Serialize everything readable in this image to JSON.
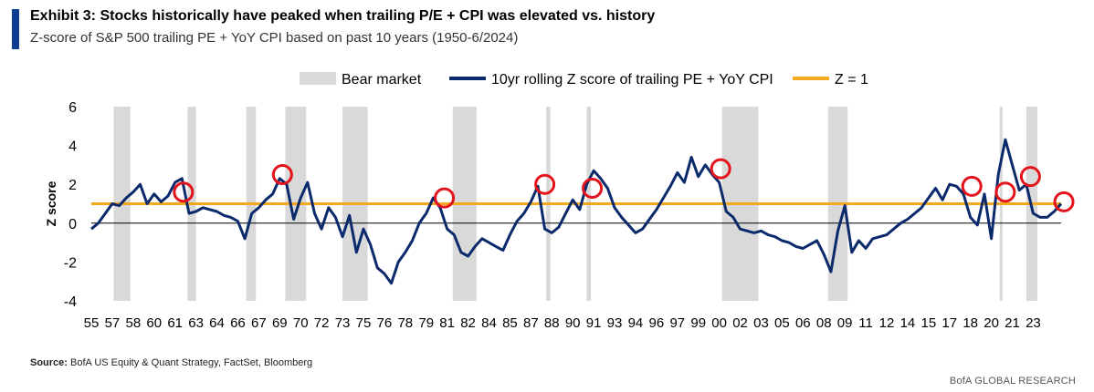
{
  "header": {
    "title": "Exhibit 3: Stocks historically have peaked when trailing P/E + CPI was elevated vs. history",
    "subtitle": "Z-score of S&P 500 trailing PE + YoY CPI based on past 10 years (1950-6/2024)"
  },
  "footer": {
    "source_label": "Source:",
    "source_text": " BofA US Equity & Quant Strategy, FactSet, Bloomberg",
    "brand": "BofA GLOBAL RESEARCH"
  },
  "colors": {
    "accent": "#0b3d91",
    "series": "#0b2a6b",
    "threshold": "#f4a81d",
    "bear": "#d9d9d9",
    "marker": "#e3121b"
  },
  "chart_data": {
    "type": "line",
    "xlabel": "",
    "ylabel": "Z score",
    "ylim": [
      -4,
      6
    ],
    "xlim": [
      1955,
      2024.5
    ],
    "y_ticks": [
      -4,
      -2,
      0,
      2,
      4,
      6
    ],
    "x_tick_labels": [
      "55",
      "57",
      "58",
      "60",
      "61",
      "63",
      "64",
      "66",
      "67",
      "69",
      "70",
      "72",
      "73",
      "75",
      "76",
      "78",
      "79",
      "81",
      "82",
      "84",
      "85",
      "87",
      "88",
      "90",
      "91",
      "93",
      "94",
      "96",
      "97",
      "99",
      "00",
      "02",
      "03",
      "05",
      "06",
      "08",
      "09",
      "11",
      "12",
      "14",
      "15",
      "17",
      "18",
      "20",
      "21",
      "23"
    ],
    "x_tick_years": [
      1955,
      1956.5,
      1958,
      1959.5,
      1961,
      1962.5,
      1964,
      1965.5,
      1967,
      1968.5,
      1970,
      1971.5,
      1973,
      1974.5,
      1976,
      1977.5,
      1979,
      1980.5,
      1982,
      1983.5,
      1985,
      1986.5,
      1988,
      1989.5,
      1991,
      1992.5,
      1994,
      1995.5,
      1997,
      1998.5,
      2000,
      2001.5,
      2003,
      2004.5,
      2006,
      2007.5,
      2009,
      2010.5,
      2012,
      2013.5,
      2015,
      2016.5,
      2018,
      2019.5,
      2021,
      2022.5
    ],
    "legend": [
      {
        "name": "Bear market",
        "kind": "band"
      },
      {
        "name": "10yr rolling Z score of trailing PE + YoY CPI",
        "kind": "line"
      },
      {
        "name": "Z = 1",
        "kind": "threshold"
      }
    ],
    "legend_position": "top",
    "threshold": 1,
    "bear_markets": [
      [
        1956.6,
        1957.8
      ],
      [
        1961.9,
        1962.5
      ],
      [
        1966.1,
        1966.8
      ],
      [
        1968.9,
        1970.4
      ],
      [
        1973.0,
        1974.8
      ],
      [
        1980.9,
        1982.6
      ],
      [
        1987.6,
        1987.9
      ],
      [
        1990.5,
        1990.8
      ],
      [
        2000.2,
        2002.8
      ],
      [
        2007.8,
        2009.2
      ],
      [
        2020.1,
        2020.3
      ],
      [
        2022.0,
        2022.8
      ]
    ],
    "series": [
      {
        "name": "10yr rolling Z score of trailing PE + YoY CPI",
        "x": [
          1955,
          1955.5,
          1956,
          1956.5,
          1957,
          1957.5,
          1958,
          1958.5,
          1959,
          1959.5,
          1960,
          1960.5,
          1961,
          1961.5,
          1962,
          1962.5,
          1963,
          1963.5,
          1964,
          1964.5,
          1965,
          1965.5,
          1966,
          1966.5,
          1967,
          1967.5,
          1968,
          1968.5,
          1969,
          1969.5,
          1970,
          1970.5,
          1971,
          1971.5,
          1972,
          1972.5,
          1973,
          1973.5,
          1974,
          1974.5,
          1975,
          1975.5,
          1976,
          1976.5,
          1977,
          1977.5,
          1978,
          1978.5,
          1979,
          1979.5,
          1980,
          1980.5,
          1981,
          1981.5,
          1982,
          1982.5,
          1983,
          1983.5,
          1984,
          1984.5,
          1985,
          1985.5,
          1986,
          1986.5,
          1987,
          1987.5,
          1988,
          1988.5,
          1989,
          1989.5,
          1990,
          1990.5,
          1991,
          1991.5,
          1992,
          1992.5,
          1993,
          1993.5,
          1994,
          1994.5,
          1995,
          1995.5,
          1996,
          1996.5,
          1997,
          1997.5,
          1998,
          1998.5,
          1999,
          1999.5,
          2000,
          2000.5,
          2001,
          2001.5,
          2002,
          2002.5,
          2003,
          2003.5,
          2004,
          2004.5,
          2005,
          2005.5,
          2006,
          2006.5,
          2007,
          2007.5,
          2008,
          2008.5,
          2009,
          2009.5,
          2010,
          2010.5,
          2011,
          2011.5,
          2012,
          2012.5,
          2013,
          2013.5,
          2014,
          2014.5,
          2015,
          2015.5,
          2016,
          2016.5,
          2017,
          2017.5,
          2018,
          2018.5,
          2019,
          2019.5,
          2020,
          2020.5,
          2021,
          2021.5,
          2022,
          2022.5,
          2023,
          2023.5,
          2024,
          2024.5
        ],
        "values": [
          -0.3,
          0,
          0.5,
          1,
          0.9,
          1.3,
          1.6,
          2,
          1,
          1.5,
          1.1,
          1.4,
          2.1,
          2.3,
          0.5,
          0.6,
          0.8,
          0.7,
          0.6,
          0.4,
          0.3,
          0.1,
          -0.8,
          0.5,
          0.8,
          1.2,
          1.5,
          2.3,
          2,
          0.2,
          1.3,
          2.1,
          0.5,
          -0.3,
          0.8,
          0.3,
          -0.7,
          0.4,
          -1.5,
          -0.3,
          -1.1,
          -2.3,
          -2.6,
          -3.1,
          -2.0,
          -1.5,
          -0.9,
          0,
          0.5,
          1.3,
          0.8,
          -0.3,
          -0.6,
          -1.5,
          -1.7,
          -1.2,
          -0.8,
          -1.0,
          -1.2,
          -1.4,
          -0.6,
          0.1,
          0.5,
          1.1,
          1.9,
          -0.3,
          -0.5,
          -0.2,
          0.5,
          1.2,
          0.7,
          2.0,
          2.7,
          2.3,
          1.8,
          0.8,
          0.3,
          -0.1,
          -0.5,
          -0.3,
          0.2,
          0.7,
          1.3,
          1.9,
          2.6,
          2.1,
          3.4,
          2.4,
          3.0,
          2.5,
          2.1,
          0.6,
          0.3,
          -0.3,
          -0.4,
          -0.5,
          -0.4,
          -0.6,
          -0.7,
          -0.9,
          -1.0,
          -1.2,
          -1.3,
          -1.1,
          -0.9,
          -1.6,
          -2.5,
          -0.4,
          0.9,
          -1.5,
          -0.9,
          -1.3,
          -0.8,
          -0.7,
          -0.6,
          -0.3,
          0,
          0.2,
          0.5,
          0.8,
          1.3,
          1.8,
          1.2,
          2.0,
          1.9,
          1.5,
          0.3,
          -0.1,
          1.5,
          -0.8,
          2.5,
          4.3,
          3.0,
          1.7,
          2.0,
          0.5,
          0.3,
          0.3,
          0.6,
          1.0
        ]
      }
    ],
    "highlight_circles": [
      {
        "x": 1961.6,
        "y": 1.6
      },
      {
        "x": 1968.7,
        "y": 2.5
      },
      {
        "x": 1980.3,
        "y": 1.3
      },
      {
        "x": 1987.5,
        "y": 2.0
      },
      {
        "x": 1990.9,
        "y": 1.8
      },
      {
        "x": 2000.1,
        "y": 2.8
      },
      {
        "x": 2018.1,
        "y": 1.9
      },
      {
        "x": 2020.5,
        "y": 1.6
      },
      {
        "x": 2022.3,
        "y": 2.4
      },
      {
        "x": 2024.7,
        "y": 1.1
      }
    ]
  }
}
